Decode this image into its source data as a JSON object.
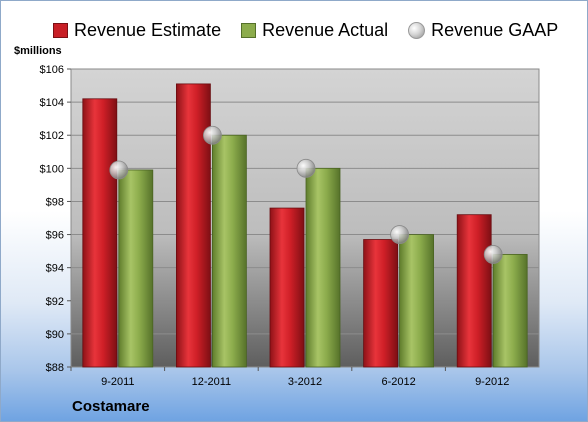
{
  "legend": {
    "estimate": "Revenue Estimate",
    "actual": "Revenue Actual",
    "gaap": "Revenue GAAP"
  },
  "unit_label": "$millions",
  "company": "Costamare",
  "colors": {
    "estimate": "#c81f26",
    "actual": "#8cac4c",
    "gaap": "#c8c8c8"
  },
  "chart_data": {
    "type": "bar",
    "categories": [
      "9-2011",
      "12-2011",
      "3-2012",
      "6-2012",
      "9-2012"
    ],
    "series": [
      {
        "name": "Revenue Estimate",
        "values": [
          104.2,
          105.1,
          97.6,
          95.7,
          97.2
        ]
      },
      {
        "name": "Revenue Actual",
        "values": [
          99.9,
          102.0,
          100.0,
          96.0,
          94.8
        ]
      },
      {
        "name": "Revenue GAAP",
        "values": [
          99.9,
          102.0,
          100.0,
          96.0,
          94.8
        ]
      }
    ],
    "ylabel": "$millions",
    "ylim": [
      88,
      106
    ],
    "yticks": [
      "$88",
      "$90",
      "$92",
      "$94",
      "$96",
      "$98",
      "$100",
      "$102",
      "$104",
      "$106"
    ],
    "grid": true,
    "legend_position": "top"
  }
}
